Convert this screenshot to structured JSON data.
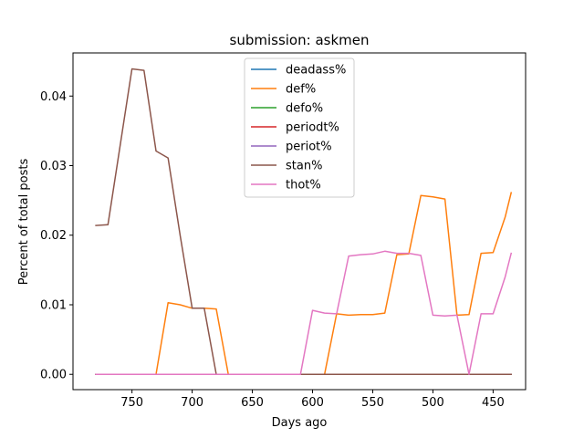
{
  "chart_data": {
    "type": "line",
    "title": "submission: askmen",
    "xlabel": "Days ago",
    "ylabel": "Percent of total posts",
    "x_inverted": true,
    "xlim": [
      799,
      423
    ],
    "ylim": [
      -0.0022,
      0.0462
    ],
    "xticks": [
      750,
      700,
      650,
      600,
      550,
      500,
      450
    ],
    "yticks": [
      0.0,
      0.01,
      0.02,
      0.03,
      0.04
    ],
    "xtick_labels": [
      "750",
      "700",
      "650",
      "600",
      "550",
      "500",
      "450"
    ],
    "ytick_labels": [
      "0.00",
      "0.01",
      "0.02",
      "0.03",
      "0.04"
    ],
    "legend_position": "upper center",
    "series": [
      {
        "name": "deadass%",
        "color": "#1f77b4",
        "x": [
          780,
          770,
          750,
          740,
          720,
          710,
          700,
          690,
          680,
          670,
          650,
          600,
          590,
          580,
          560,
          540,
          520,
          510,
          500,
          490,
          480,
          460,
          450,
          435
        ],
        "y": [
          0,
          0,
          0,
          0,
          0,
          0,
          0,
          0,
          0,
          0,
          0,
          0,
          0,
          0,
          0,
          0,
          0,
          0,
          0,
          0,
          0,
          0,
          0,
          0
        ]
      },
      {
        "name": "def%",
        "color": "#ff7f0e",
        "x": [
          780,
          770,
          760,
          750,
          740,
          730,
          720,
          710,
          700,
          690,
          680,
          670,
          650,
          610,
          600,
          590,
          580,
          570,
          560,
          550,
          540,
          530,
          520,
          510,
          500,
          490,
          480,
          470,
          460,
          450,
          440,
          435
        ],
        "y": [
          0,
          0,
          0,
          0,
          0,
          0,
          0.0103,
          0.01,
          0.0095,
          0.0095,
          0.0094,
          0,
          0,
          0,
          0,
          0,
          0.0087,
          0.0085,
          0.0086,
          0.0086,
          0.0088,
          0.0172,
          0.0173,
          0.0257,
          0.0255,
          0.0252,
          0.0085,
          0.0086,
          0.0174,
          0.0175,
          0.0226,
          0.0261
        ]
      },
      {
        "name": "defo%",
        "color": "#2ca02c",
        "x": [
          780,
          750,
          700,
          650,
          600,
          550,
          500,
          450,
          435
        ],
        "y": [
          0,
          0,
          0,
          0,
          0,
          0,
          0,
          0,
          0
        ]
      },
      {
        "name": "periodt%",
        "color": "#d62728",
        "x": [
          780,
          750,
          700,
          650,
          600,
          550,
          500,
          450,
          435
        ],
        "y": [
          0,
          0,
          0,
          0,
          0,
          0,
          0,
          0,
          0
        ]
      },
      {
        "name": "periot%",
        "color": "#9467bd",
        "x": [
          780,
          750,
          700,
          650,
          600,
          550,
          500,
          450,
          435
        ],
        "y": [
          0,
          0,
          0,
          0,
          0,
          0,
          0,
          0,
          0
        ]
      },
      {
        "name": "stan%",
        "color": "#8c564b",
        "x": [
          780,
          770,
          750,
          740,
          730,
          720,
          710,
          700,
          690,
          680,
          670,
          660,
          650,
          600,
          550,
          500,
          450,
          435
        ],
        "y": [
          0.0214,
          0.0215,
          0.0439,
          0.0437,
          0.0321,
          0.0311,
          0.02,
          0.0095,
          0.0095,
          0.0,
          0,
          0,
          0,
          0,
          0,
          0,
          0,
          0
        ]
      },
      {
        "name": "thot%",
        "color": "#e377c2",
        "x": [
          780,
          770,
          750,
          700,
          650,
          610,
          600,
          590,
          580,
          570,
          560,
          550,
          540,
          530,
          520,
          510,
          500,
          490,
          480,
          470,
          460,
          450,
          440,
          435
        ],
        "y": [
          0,
          0,
          0,
          0,
          0,
          0,
          0.0092,
          0.0088,
          0.0087,
          0.017,
          0.0172,
          0.0173,
          0.0177,
          0.0174,
          0.0174,
          0.0171,
          0.0085,
          0.0084,
          0.0085,
          0,
          0.0087,
          0.0087,
          0.014,
          0.0174
        ]
      }
    ]
  }
}
